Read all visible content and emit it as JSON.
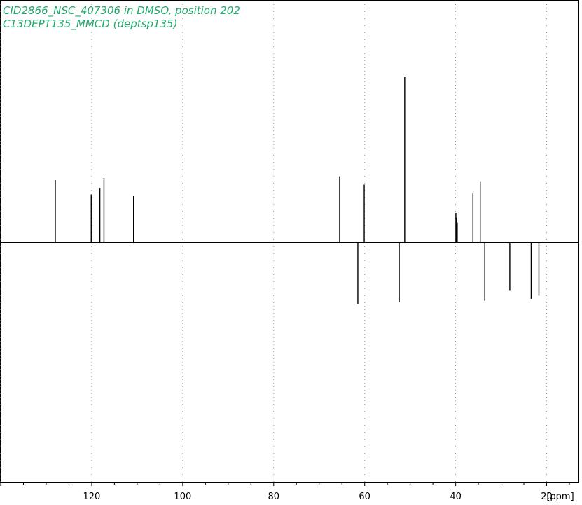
{
  "chart_data": {
    "type": "line",
    "title_lines": [
      "CID2866_NSC_407306 in DMSO, position 202",
      "C13DEPT135_MMCD (deptsp135)"
    ],
    "xlabel": "[ppm]",
    "x_reversed": true,
    "xlim": [
      140,
      13
    ],
    "ylim": [
      -1.42,
      1.0
    ],
    "grid": "vertical-dotted",
    "x_ticks": [
      {
        "value": 120,
        "label": "120"
      },
      {
        "value": 100,
        "label": "100"
      },
      {
        "value": 80,
        "label": "80"
      },
      {
        "value": 60,
        "label": "60"
      },
      {
        "value": 40,
        "label": "40"
      },
      {
        "value": 20,
        "label": "20"
      }
    ],
    "peaks": [
      {
        "ppm": 128.0,
        "intensity": 0.38
      },
      {
        "ppm": 120.1,
        "intensity": 0.29
      },
      {
        "ppm": 118.2,
        "intensity": 0.33
      },
      {
        "ppm": 117.3,
        "intensity": 0.39
      },
      {
        "ppm": 110.8,
        "intensity": 0.28
      },
      {
        "ppm": 65.5,
        "intensity": 0.4
      },
      {
        "ppm": 61.5,
        "intensity": -0.37
      },
      {
        "ppm": 60.1,
        "intensity": 0.35
      },
      {
        "ppm": 52.4,
        "intensity": -0.36
      },
      {
        "ppm": 51.2,
        "intensity": 1.0
      },
      {
        "ppm": 39.95,
        "intensity": 0.18
      },
      {
        "ppm": 39.8,
        "intensity": 0.15
      },
      {
        "ppm": 39.65,
        "intensity": 0.12
      },
      {
        "ppm": 36.2,
        "intensity": 0.3
      },
      {
        "ppm": 34.6,
        "intensity": 0.37
      },
      {
        "ppm": 33.6,
        "intensity": -0.35
      },
      {
        "ppm": 28.1,
        "intensity": -0.29
      },
      {
        "ppm": 23.4,
        "intensity": -0.34
      },
      {
        "ppm": 21.7,
        "intensity": -0.32
      }
    ]
  }
}
